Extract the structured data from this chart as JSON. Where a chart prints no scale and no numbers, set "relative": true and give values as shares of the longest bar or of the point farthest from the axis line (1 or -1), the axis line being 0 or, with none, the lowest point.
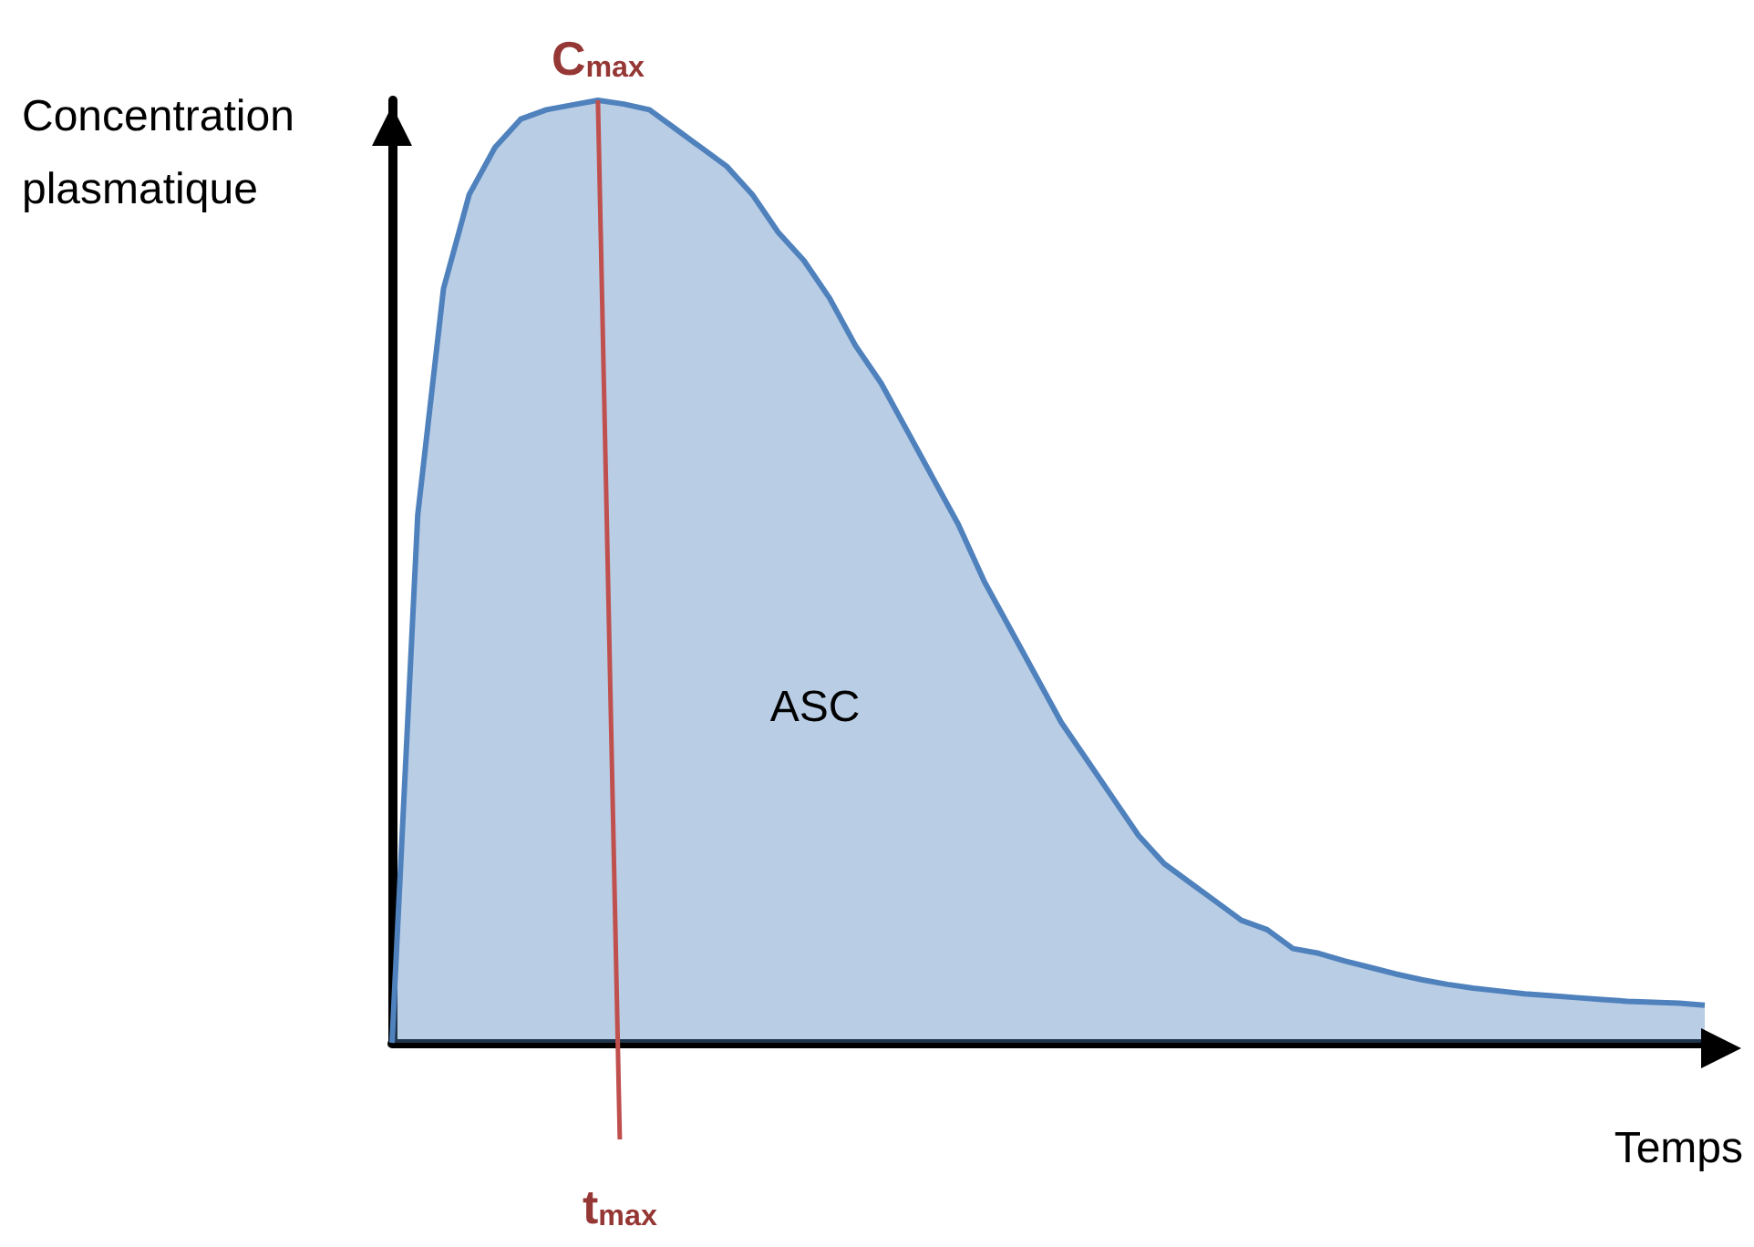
{
  "chart_data": {
    "type": "area",
    "relative": true,
    "xlabel": "Temps",
    "ylabel": "Concentration plasmatique",
    "categories": [
      null,
      null,
      null,
      null,
      null,
      null,
      null,
      null,
      null,
      null,
      null,
      null,
      null,
      null,
      null,
      null,
      null,
      null,
      null,
      null,
      null,
      null,
      null,
      null,
      null,
      null,
      null,
      null,
      null,
      null,
      null,
      null,
      null,
      null,
      null,
      null,
      null,
      null,
      null,
      null,
      null,
      null,
      null,
      null,
      null,
      null,
      null,
      null,
      null,
      null,
      null,
      null
    ],
    "series": [
      {
        "color": "#4f81bd",
        "values": [
          0,
          0.56,
          0.8,
          0.9,
          0.95,
          0.98,
          0.99,
          0.995,
          1,
          0.996,
          0.99,
          0.97,
          0.95,
          0.93,
          0.9,
          0.86,
          0.83,
          0.79,
          0.74,
          0.7,
          0.65,
          0.6,
          0.55,
          0.49,
          0.44,
          0.39,
          0.34,
          0.3,
          0.26,
          0.22,
          0.19,
          0.17,
          0.15,
          0.13,
          0.12,
          0.1,
          0.095,
          0.087,
          0.08,
          0.073,
          0.067,
          0.062,
          0.058,
          0.055,
          0.052,
          0.05,
          0.048,
          0.046,
          0.044,
          0.043,
          0.042,
          0.04
        ]
      }
    ],
    "annotations": [
      "C$_{max}$",
      "t$_{max}$",
      "ASC"
    ]
  }
}
